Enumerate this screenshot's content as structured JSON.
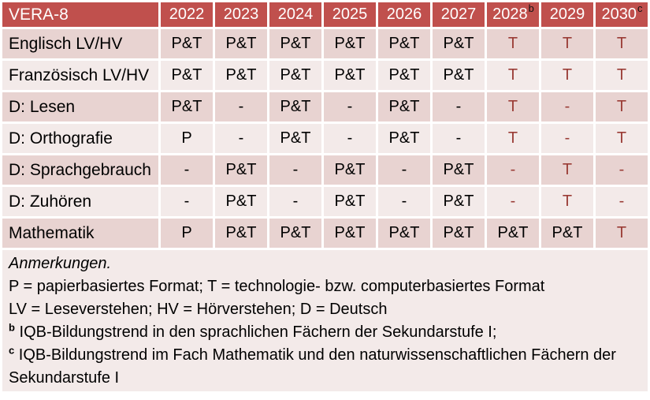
{
  "colors": {
    "header_bg": "#C0504D",
    "header_text": "#FFFFFF",
    "row_dark_bg": "#E8D3D1",
    "row_light_bg": "#F3EAE9",
    "notes_bg": "#F3EAE9",
    "tech_red_text": "#9A3C36",
    "body_text": "#000000"
  },
  "table": {
    "title": "VERA-8",
    "columns": [
      {
        "label": "2022",
        "sup": ""
      },
      {
        "label": "2023",
        "sup": ""
      },
      {
        "label": "2024",
        "sup": ""
      },
      {
        "label": "2025",
        "sup": ""
      },
      {
        "label": "2026",
        "sup": ""
      },
      {
        "label": "2027",
        "sup": ""
      },
      {
        "label": "2028",
        "sup": "b"
      },
      {
        "label": "2029",
        "sup": ""
      },
      {
        "label": "2030",
        "sup": "c"
      }
    ],
    "rows": [
      {
        "label": "Englisch LV/HV",
        "cells": [
          {
            "v": "P&T",
            "red": false
          },
          {
            "v": "P&T",
            "red": false
          },
          {
            "v": "P&T",
            "red": false
          },
          {
            "v": "P&T",
            "red": false
          },
          {
            "v": "P&T",
            "red": false
          },
          {
            "v": "P&T",
            "red": false
          },
          {
            "v": "T",
            "red": true
          },
          {
            "v": "T",
            "red": true
          },
          {
            "v": "T",
            "red": true
          }
        ]
      },
      {
        "label": "Französisch LV/HV",
        "cells": [
          {
            "v": "P&T",
            "red": false
          },
          {
            "v": "P&T",
            "red": false
          },
          {
            "v": "P&T",
            "red": false
          },
          {
            "v": "P&T",
            "red": false
          },
          {
            "v": "P&T",
            "red": false
          },
          {
            "v": "P&T",
            "red": false
          },
          {
            "v": "T",
            "red": true
          },
          {
            "v": "T",
            "red": true
          },
          {
            "v": "T",
            "red": true
          }
        ]
      },
      {
        "label": "D: Lesen",
        "cells": [
          {
            "v": "P&T",
            "red": false
          },
          {
            "v": "-",
            "red": false
          },
          {
            "v": "P&T",
            "red": false
          },
          {
            "v": "-",
            "red": false
          },
          {
            "v": "P&T",
            "red": false
          },
          {
            "v": "-",
            "red": false
          },
          {
            "v": "T",
            "red": true
          },
          {
            "v": "-",
            "red": true
          },
          {
            "v": "T",
            "red": true
          }
        ]
      },
      {
        "label": "D: Orthografie",
        "cells": [
          {
            "v": "P",
            "red": false
          },
          {
            "v": "-",
            "red": false
          },
          {
            "v": "P&T",
            "red": false
          },
          {
            "v": "-",
            "red": false
          },
          {
            "v": "P&T",
            "red": false
          },
          {
            "v": "-",
            "red": false
          },
          {
            "v": "T",
            "red": true
          },
          {
            "v": "-",
            "red": true
          },
          {
            "v": "T",
            "red": true
          }
        ]
      },
      {
        "label": "D: Sprachgebrauch",
        "cells": [
          {
            "v": "-",
            "red": false
          },
          {
            "v": "P&T",
            "red": false
          },
          {
            "v": "-",
            "red": false
          },
          {
            "v": "P&T",
            "red": false
          },
          {
            "v": "-",
            "red": false
          },
          {
            "v": "P&T",
            "red": false
          },
          {
            "v": "-",
            "red": true
          },
          {
            "v": "T",
            "red": true
          },
          {
            "v": "-",
            "red": true
          }
        ]
      },
      {
        "label": "D: Zuhören",
        "cells": [
          {
            "v": "-",
            "red": false
          },
          {
            "v": "P&T",
            "red": false
          },
          {
            "v": "-",
            "red": false
          },
          {
            "v": "P&T",
            "red": false
          },
          {
            "v": "-",
            "red": false
          },
          {
            "v": "P&T",
            "red": false
          },
          {
            "v": "-",
            "red": true
          },
          {
            "v": "T",
            "red": true
          },
          {
            "v": "-",
            "red": true
          }
        ]
      },
      {
        "label": "Mathematik",
        "cells": [
          {
            "v": "P",
            "red": false
          },
          {
            "v": "P&T",
            "red": false
          },
          {
            "v": "P&T",
            "red": false
          },
          {
            "v": "P&T",
            "red": false
          },
          {
            "v": "P&T",
            "red": false
          },
          {
            "v": "P&T",
            "red": false
          },
          {
            "v": "P&T",
            "red": false
          },
          {
            "v": "P&T",
            "red": false
          },
          {
            "v": "T",
            "red": true
          }
        ]
      }
    ]
  },
  "notes": {
    "heading": "Anmerkungen.",
    "formats": "P = papierbasiertes Format; T = technologie- bzw. computerbasiertes Format",
    "abbreviations": "LV = Leseverstehen; HV = Hörverstehen; D = Deutsch",
    "b": {
      "sup": "b",
      "text": "IQB-Bildungstrend in den sprachlichen Fächern der Sekundarstufe I;"
    },
    "c": {
      "sup": "c",
      "text": "IQB-Bildungstrend im Fach Mathematik und den naturwissenschaftlichen Fächern der Sekundarstufe I"
    }
  }
}
